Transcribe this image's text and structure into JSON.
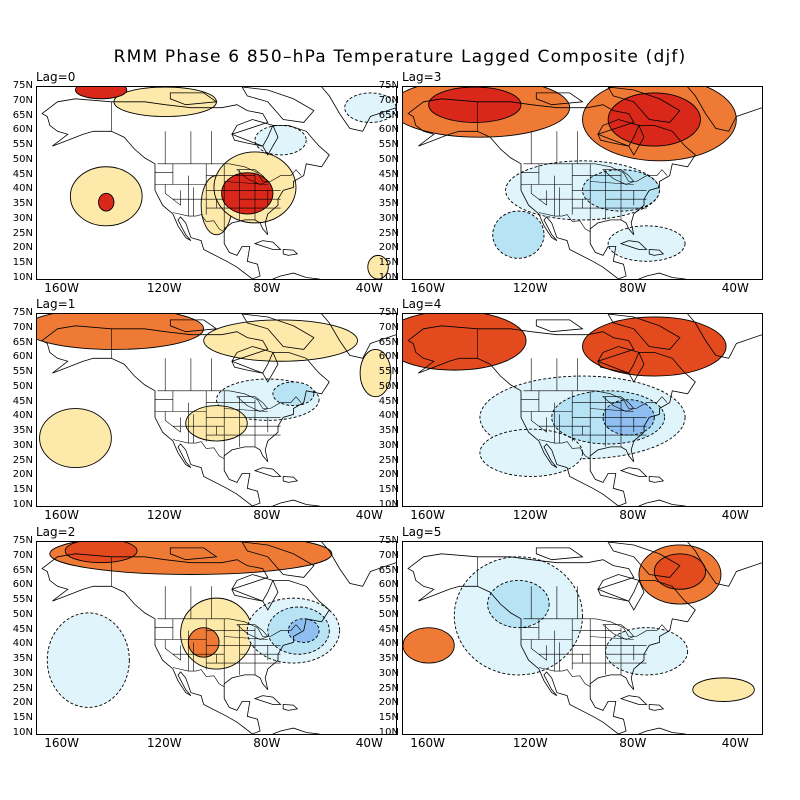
{
  "title": "RMM Phase 6 850–hPa Temperature Lagged Composite (djf)",
  "latitude_labels": [
    "75N",
    "70N",
    "65N",
    "60N",
    "55N",
    "50N",
    "45N",
    "40N",
    "35N",
    "30N",
    "25N",
    "20N",
    "15N",
    "10N"
  ],
  "longitude_labels": [
    "160W",
    "120W",
    "80W",
    "40W"
  ],
  "colors": {
    "warm_1": "#fde9a9",
    "warm_2": "#f9b56b",
    "warm_3": "#ef7a36",
    "warm_4": "#e34b1f",
    "warm_5": "#d9281a",
    "cool_1": "#e0f5fb",
    "cool_2": "#b8e3f5",
    "cool_3": "#8fbff0",
    "cool_4": "#6d9de4",
    "coast": "#000000"
  },
  "panels": [
    {
      "label": "Lag=0",
      "anomalies": [
        {
          "lon": -143,
          "lat": 38,
          "rx": 14,
          "ry": 10,
          "level": 1
        },
        {
          "lon": -143,
          "lat": 36,
          "rx": 3,
          "ry": 3,
          "level": 4
        },
        {
          "lon": -100,
          "lat": 35,
          "rx": 6,
          "ry": 10,
          "level": 1
        },
        {
          "lon": -85,
          "lat": 41,
          "rx": 16,
          "ry": 12,
          "level": 1
        },
        {
          "lon": -88,
          "lat": 39,
          "rx": 10,
          "ry": 7,
          "level": 4
        },
        {
          "lon": -145,
          "lat": 74,
          "rx": 10,
          "ry": 3,
          "level": 4
        },
        {
          "lon": -120,
          "lat": 70,
          "rx": 20,
          "ry": 5,
          "level": 1
        },
        {
          "lon": -75,
          "lat": 57,
          "rx": 10,
          "ry": 5,
          "level": -1
        },
        {
          "lon": -40,
          "lat": 68,
          "rx": 10,
          "ry": 5,
          "level": -1
        },
        {
          "lon": -37,
          "lat": 14,
          "rx": 4,
          "ry": 4,
          "level": 1
        }
      ]
    },
    {
      "label": "Lag=3",
      "anomalies": [
        {
          "lon": -140,
          "lat": 68,
          "rx": 35,
          "ry": 10,
          "level": 2
        },
        {
          "lon": -142,
          "lat": 69,
          "rx": 18,
          "ry": 6,
          "level": 4
        },
        {
          "lon": -70,
          "lat": 64,
          "rx": 30,
          "ry": 14,
          "level": 2
        },
        {
          "lon": -72,
          "lat": 64,
          "rx": 18,
          "ry": 9,
          "level": 4
        },
        {
          "lon": -100,
          "lat": 40,
          "rx": 30,
          "ry": 10,
          "level": -1
        },
        {
          "lon": -85,
          "lat": 40,
          "rx": 15,
          "ry": 7,
          "level": -2
        },
        {
          "lon": -125,
          "lat": 25,
          "rx": 10,
          "ry": 8,
          "level": -2
        },
        {
          "lon": -75,
          "lat": 22,
          "rx": 15,
          "ry": 6,
          "level": -1
        }
      ]
    },
    {
      "label": "Lag=1",
      "anomalies": [
        {
          "lon": -140,
          "lat": 70,
          "rx": 35,
          "ry": 7,
          "level": 2
        },
        {
          "lon": -75,
          "lat": 66,
          "rx": 30,
          "ry": 7,
          "level": 1
        },
        {
          "lon": -155,
          "lat": 33,
          "rx": 14,
          "ry": 10,
          "level": 1
        },
        {
          "lon": -80,
          "lat": 46,
          "rx": 20,
          "ry": 7,
          "level": -1
        },
        {
          "lon": -70,
          "lat": 48,
          "rx": 8,
          "ry": 4,
          "level": -2
        },
        {
          "lon": -100,
          "lat": 38,
          "rx": 12,
          "ry": 6,
          "level": 1
        },
        {
          "lon": -38,
          "lat": 55,
          "rx": 6,
          "ry": 8,
          "level": 1
        }
      ]
    },
    {
      "label": "Lag=4",
      "anomalies": [
        {
          "lon": -150,
          "lat": 66,
          "rx": 28,
          "ry": 10,
          "level": 3
        },
        {
          "lon": -72,
          "lat": 64,
          "rx": 28,
          "ry": 10,
          "level": 3
        },
        {
          "lon": -100,
          "lat": 40,
          "rx": 40,
          "ry": 14,
          "level": -1
        },
        {
          "lon": -90,
          "lat": 40,
          "rx": 22,
          "ry": 9,
          "level": -2
        },
        {
          "lon": -82,
          "lat": 40,
          "rx": 10,
          "ry": 6,
          "level": -3
        },
        {
          "lon": -120,
          "lat": 28,
          "rx": 20,
          "ry": 8,
          "level": -1
        }
      ]
    },
    {
      "label": "Lag=2",
      "anomalies": [
        {
          "lon": -110,
          "lat": 71,
          "rx": 55,
          "ry": 7,
          "level": 2
        },
        {
          "lon": -145,
          "lat": 72,
          "rx": 14,
          "ry": 4,
          "level": 3
        },
        {
          "lon": -100,
          "lat": 44,
          "rx": 14,
          "ry": 12,
          "level": 1
        },
        {
          "lon": -105,
          "lat": 41,
          "rx": 6,
          "ry": 5,
          "level": 2
        },
        {
          "lon": -70,
          "lat": 45,
          "rx": 18,
          "ry": 11,
          "level": -1
        },
        {
          "lon": -68,
          "lat": 45,
          "rx": 12,
          "ry": 8,
          "level": -2
        },
        {
          "lon": -66,
          "lat": 45,
          "rx": 6,
          "ry": 4,
          "level": -3
        },
        {
          "lon": -150,
          "lat": 35,
          "rx": 16,
          "ry": 16,
          "level": -1
        }
      ]
    },
    {
      "label": "Lag=5",
      "anomalies": [
        {
          "lon": -62,
          "lat": 64,
          "rx": 16,
          "ry": 10,
          "level": 2
        },
        {
          "lon": -62,
          "lat": 65,
          "rx": 10,
          "ry": 6,
          "level": 3
        },
        {
          "lon": -125,
          "lat": 50,
          "rx": 25,
          "ry": 20,
          "level": -1
        },
        {
          "lon": -125,
          "lat": 54,
          "rx": 12,
          "ry": 8,
          "level": -2
        },
        {
          "lon": -160,
          "lat": 40,
          "rx": 10,
          "ry": 6,
          "level": 2
        },
        {
          "lon": -75,
          "lat": 38,
          "rx": 16,
          "ry": 8,
          "level": -1
        },
        {
          "lon": -45,
          "lat": 25,
          "rx": 12,
          "ry": 4,
          "level": 1
        }
      ]
    }
  ]
}
